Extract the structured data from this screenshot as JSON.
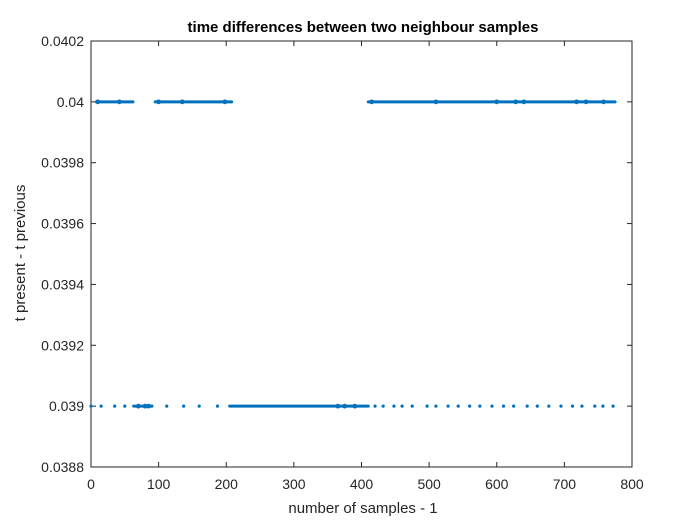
{
  "chart_data": {
    "type": "scatter",
    "title": "time differences between two neighbour samples",
    "xlabel": "number of samples - 1",
    "ylabel": "t present - t previous",
    "xlim": [
      0,
      800
    ],
    "ylim": [
      0.0388,
      0.0402
    ],
    "xticks": [
      0,
      100,
      200,
      300,
      400,
      500,
      600,
      700,
      800
    ],
    "xtick_labels": [
      "0",
      "100",
      "200",
      "300",
      "400",
      "500",
      "600",
      "700",
      "800"
    ],
    "yticks": [
      0.0388,
      0.039,
      0.0392,
      0.0394,
      0.0396,
      0.0398,
      0.04,
      0.0402
    ],
    "ytick_labels": [
      "0.0388",
      "0.039",
      "0.0392",
      "0.0394",
      "0.0396",
      "0.0398",
      "0.04",
      "0.0402"
    ],
    "grid": false,
    "marker_color": "#0072BD",
    "series": [
      {
        "values_note": "",
        "segments_y004": [
          [
            8,
            62
          ],
          [
            95,
            208
          ],
          [
            410,
            775
          ]
        ],
        "segments_y0039": [
          [
            63,
            89
          ],
          [
            205,
            410
          ]
        ],
        "isolated_y0039": [
          0,
          15,
          35,
          50,
          90,
          112,
          137,
          160,
          187,
          420,
          432,
          448,
          460,
          475,
          497,
          510,
          528,
          543,
          560,
          575,
          593,
          610,
          625,
          645,
          660,
          677,
          695,
          712,
          726,
          745,
          757,
          772
        ]
      }
    ]
  }
}
